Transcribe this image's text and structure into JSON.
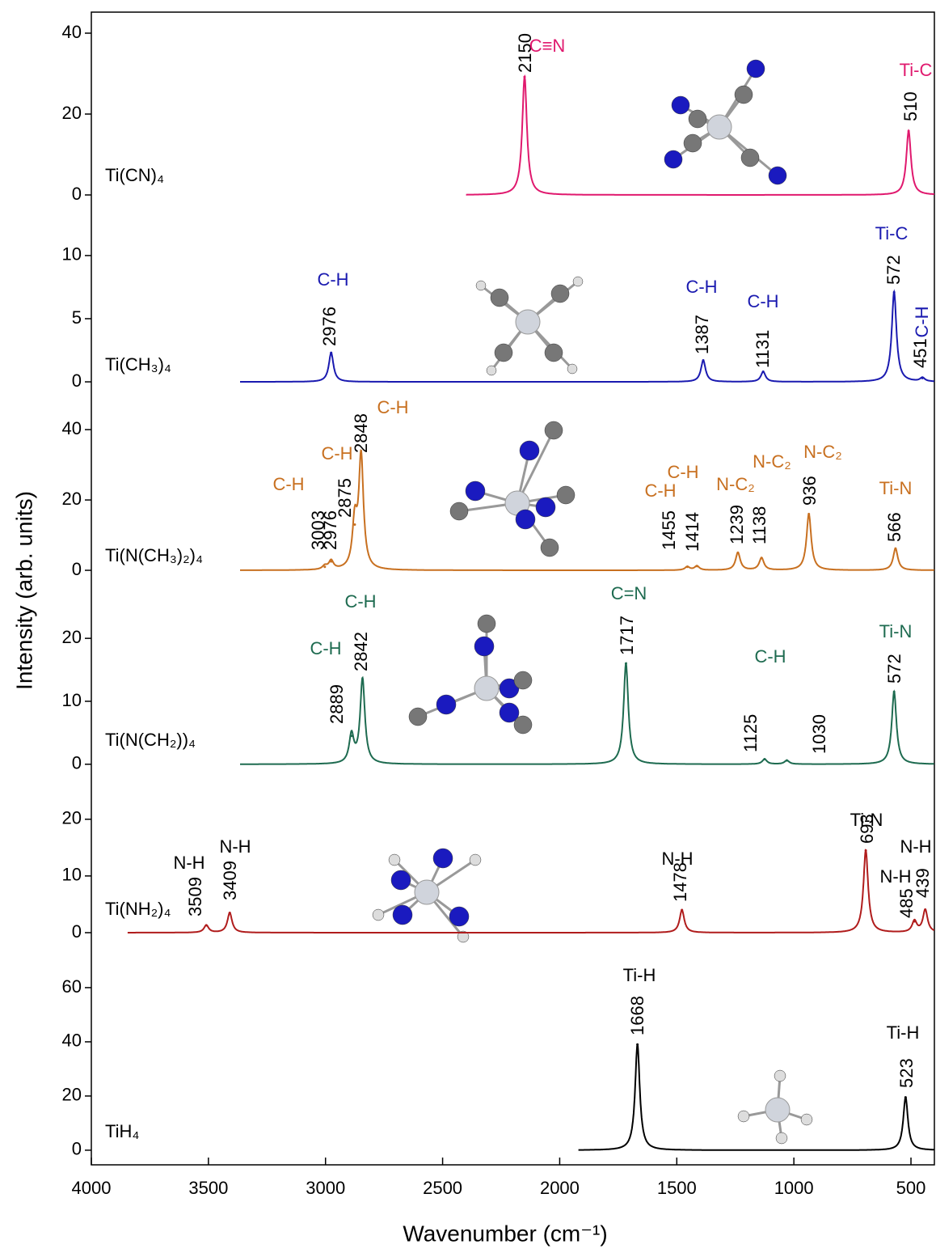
{
  "chart_data": {
    "type": "line",
    "x_label": "Wavenumber (cm⁻¹)",
    "y_label": "Intensity (arb. units)",
    "xlim": [
      4000,
      400
    ],
    "xticks": [
      4000,
      3500,
      3000,
      2500,
      2000,
      1500,
      1000,
      500
    ],
    "series": [
      {
        "name": "Ti(CN)₄",
        "color": "#e0196e",
        "label_color": "#e0196e",
        "span": [
          2400,
          400
        ],
        "x": [
          2150,
          510
        ],
        "values": [
          29.2,
          15.8
        ],
        "ylim": [
          -4.2,
          45.2
        ],
        "yticks": [
          0,
          20,
          40
        ],
        "annotations": [
          "C≡N",
          "Ti-C"
        ]
      },
      {
        "name": "Ti(CH₃)₄",
        "color": "#1a1ab0",
        "label_color": "#1a1ab0",
        "span": [
          3365,
          400
        ],
        "x": [
          2976,
          1387,
          1131,
          572,
          451
        ],
        "values": [
          2.3,
          1.7,
          0.8,
          7.1,
          0.3
        ],
        "ylim": [
          -1.15,
          12.3
        ],
        "yticks": [
          0,
          5,
          10
        ],
        "annotations": [
          "C-H",
          "C-H",
          "C-H",
          "Ti-C",
          "C-H"
        ]
      },
      {
        "name": "Ti(N(CH₃)₂)₄",
        "color": "#c87020",
        "label_color": "#c87020",
        "span": [
          3365,
          400
        ],
        "x": [
          3003,
          2976,
          2875,
          2848,
          1455,
          1414,
          1239,
          1138,
          936,
          566
        ],
        "values": [
          1,
          2.5,
          13,
          32,
          1,
          1.2,
          5,
          3.5,
          16,
          6.2
        ],
        "ylim": [
          -3.9,
          49
        ],
        "yticks": [
          0,
          20,
          40
        ],
        "annotations": [
          "C-H",
          "C-H",
          "C-H",
          "C-H",
          "C-H",
          "N-C₂",
          "N-C₂",
          "N-C₂",
          "Ti-N"
        ]
      },
      {
        "name": "Ti(N(CH₂))₄",
        "color": "#1e6b50",
        "label_color": "#1e6b50",
        "span": [
          3365,
          400
        ],
        "x": [
          2889,
          2842,
          1717,
          1125,
          1030,
          572
        ],
        "values": [
          4.5,
          13.5,
          16,
          0.8,
          0.6,
          11.5
        ],
        "ylim": [
          -2.6,
          27.6
        ],
        "yticks": [
          0,
          10,
          20
        ],
        "annotations": [
          "C-H",
          "C-H",
          "C=N",
          "C-H",
          "Ti-N"
        ]
      },
      {
        "name": "Ti(NH₂)₄",
        "color": "#b01c1c",
        "label_color": "#000000",
        "span": [
          3845,
          400
        ],
        "x": [
          3509,
          3409,
          1478,
          693,
          485,
          439
        ],
        "values": [
          1.3,
          3.5,
          4,
          14.5,
          2,
          4
        ],
        "ylim": [
          -1,
          26.1
        ],
        "yticks": [
          0,
          10,
          20
        ],
        "annotations": [
          "N-H",
          "N-H",
          "N-H",
          "Ti-N",
          "N-H",
          "N-H"
        ]
      },
      {
        "name": "TiH₄",
        "color": "#000000",
        "label_color": "#000000",
        "span": [
          1920,
          400
        ],
        "x": [
          1668,
          523
        ],
        "values": [
          39,
          19.5
        ],
        "ylim": [
          -5.4,
          76.7
        ],
        "yticks": [
          0,
          20,
          40,
          60
        ],
        "annotations": [
          "Ti-H",
          "Ti-H"
        ]
      }
    ]
  }
}
